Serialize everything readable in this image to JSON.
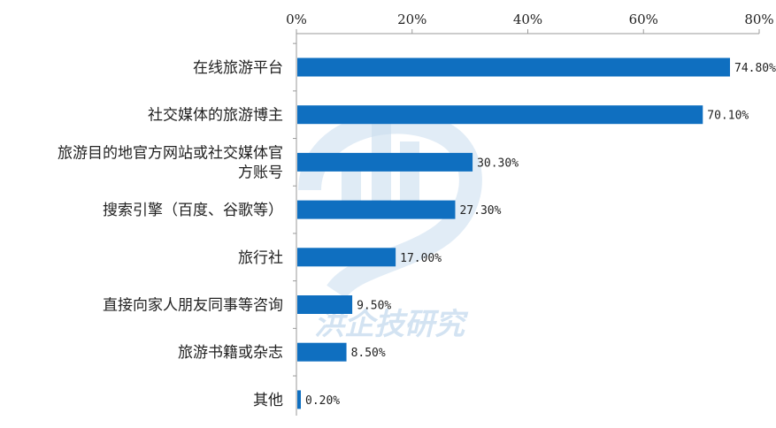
{
  "chart_data": {
    "type": "bar",
    "orientation": "horizontal",
    "categories": [
      [
        "在线旅游平台"
      ],
      [
        "社交媒体的旅游博主"
      ],
      [
        "旅游目的地官方网站或社交媒体官",
        "方账号"
      ],
      [
        "搜索引擎（百度、谷歌等）"
      ],
      [
        "旅行社"
      ],
      [
        "直接向家人朋友同事等咨询"
      ],
      [
        "旅游书籍或杂志"
      ],
      [
        "其他"
      ]
    ],
    "values": [
      74.8,
      70.1,
      30.3,
      27.3,
      17.0,
      9.5,
      8.5,
      0.2
    ],
    "value_labels": [
      "74.80%",
      "70.10%",
      "30.30%",
      "27.30%",
      "17.00%",
      "9.50%",
      "8.50%",
      "0.20%"
    ],
    "xlim": [
      0,
      80
    ],
    "xticks": [
      0,
      20,
      40,
      60,
      80
    ],
    "xtick_labels": [
      "0%",
      "20%",
      "40%",
      "60%",
      "80%"
    ],
    "axis_position": "top",
    "grid": false,
    "bar_color": "#0f6fc0",
    "title": "",
    "xlabel": "",
    "ylabel": ""
  },
  "watermark": {
    "text": "洪企技研究",
    "color": "#c9ddef"
  }
}
